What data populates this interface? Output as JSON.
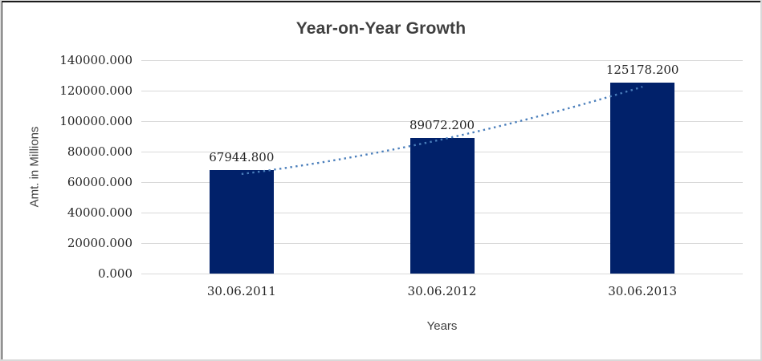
{
  "chart_data": {
    "type": "bar",
    "title": "Year-on-Year Growth",
    "xlabel": "Years",
    "ylabel": "Amt. in Millions",
    "categories": [
      "30.06.2011",
      "30.06.2012",
      "30.06.2013"
    ],
    "values": [
      67944.8,
      89072.2,
      125178.2
    ],
    "data_labels": [
      "67944.800",
      "89072.200",
      "125178.200"
    ],
    "ylim": [
      0,
      140000
    ],
    "ytick_step": 20000,
    "ytick_labels": [
      "0.000",
      "20000.000",
      "40000.000",
      "60000.000",
      "80000.000",
      "100000.000",
      "120000.000",
      "140000.000"
    ],
    "grid": true,
    "legend": "none",
    "bar_color": "#01216a",
    "gridline_color": "#d9d9d9",
    "trendline": {
      "style": "dotted",
      "color": "#4a7ebb"
    }
  }
}
